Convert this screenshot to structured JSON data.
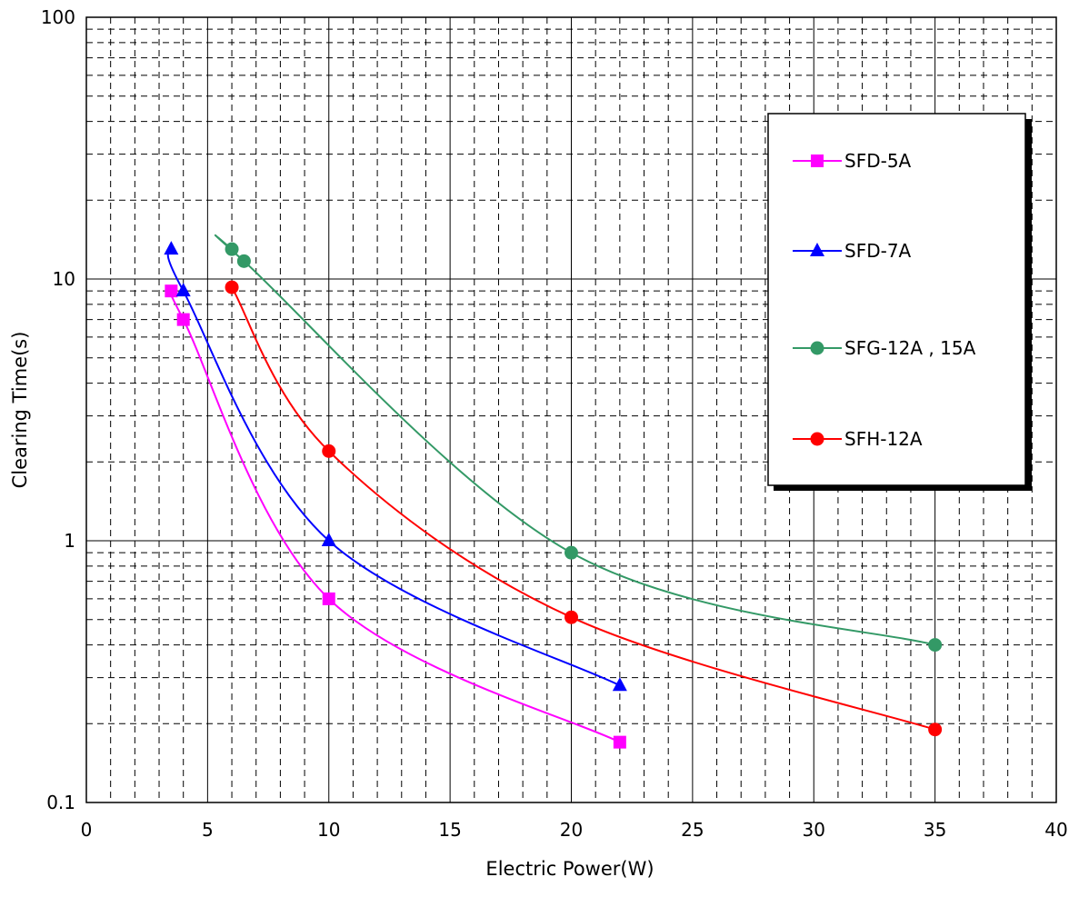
{
  "chart_data": {
    "type": "line",
    "xlabel": "Electric Power(W)",
    "ylabel": "Clearing Time(s)",
    "xlim": [
      0,
      40
    ],
    "ylim": [
      0.1,
      100
    ],
    "yscale": "log",
    "xticks": [
      0,
      5,
      10,
      15,
      20,
      25,
      30,
      35,
      40
    ],
    "xtick_labels": [
      "0",
      "5",
      "10",
      "15",
      "20",
      "25",
      "30",
      "35",
      "40"
    ],
    "yticks": [
      0.1,
      1,
      10,
      100
    ],
    "ytick_labels": [
      "0.1",
      "1",
      "10",
      "100"
    ],
    "grid": true,
    "minor_grid": "dashed",
    "legend_position": "right",
    "series": [
      {
        "name": "SFD-5A",
        "color": "#ff00ff",
        "marker": "square",
        "points": [
          [
            3.5,
            9.0
          ],
          [
            4.0,
            7.0
          ],
          [
            10.0,
            0.6
          ],
          [
            22.0,
            0.17
          ]
        ]
      },
      {
        "name": "SFD-7A",
        "color": "#0000ff",
        "marker": "triangle",
        "points": [
          [
            3.5,
            13.0
          ],
          [
            4.0,
            9.0
          ],
          [
            10.0,
            1.0
          ],
          [
            22.0,
            0.28
          ]
        ]
      },
      {
        "name": "SFG-12A , 15A",
        "color": "#339966",
        "marker": "circle",
        "points": [
          [
            6.0,
            13.0
          ],
          [
            6.5,
            11.7
          ],
          [
            20.0,
            0.9
          ],
          [
            35.0,
            0.4
          ]
        ]
      },
      {
        "name": "SFH-12A",
        "color": "#ff0000",
        "marker": "circle",
        "points": [
          [
            6.0,
            9.3
          ],
          [
            10.0,
            2.2
          ],
          [
            20.0,
            0.51
          ],
          [
            35.0,
            0.19
          ]
        ]
      }
    ]
  }
}
